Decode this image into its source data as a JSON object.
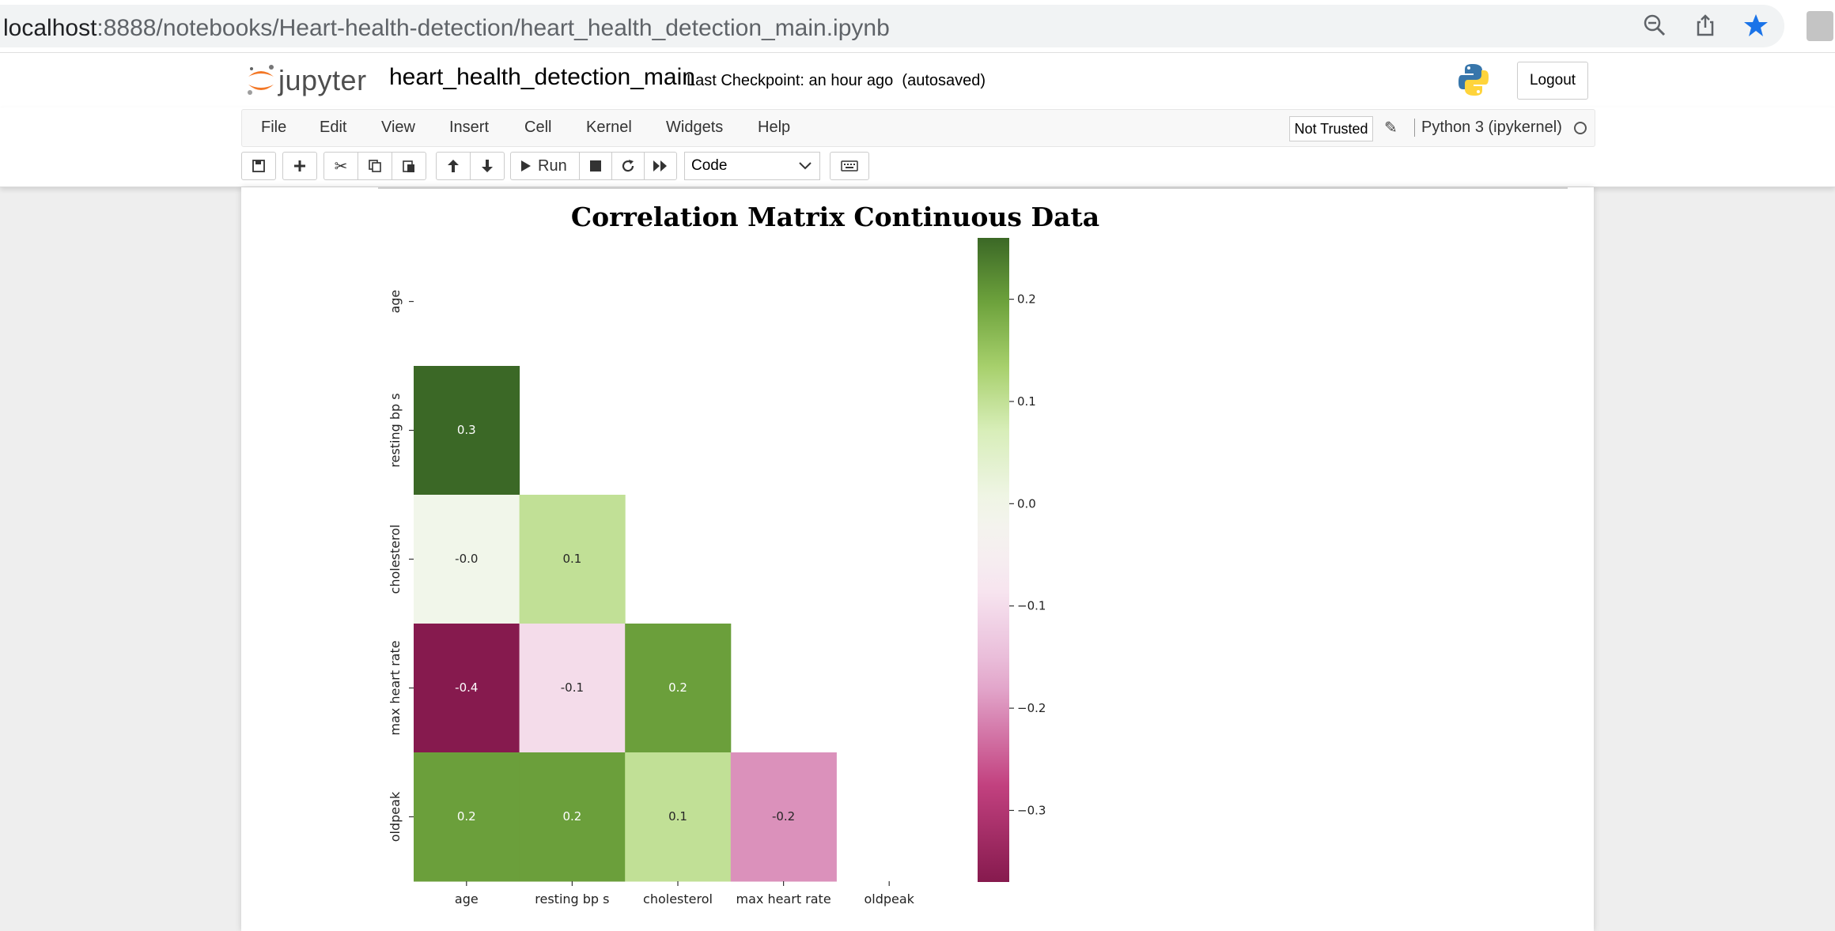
{
  "browser": {
    "url_host": "localhost",
    "url_path": ":8888/notebooks/Heart-health-detection/heart_health_detection_main.ipynb",
    "icons": [
      "zoom-out-icon",
      "share-icon",
      "bookmark-star-icon",
      "profile-avatar"
    ]
  },
  "header": {
    "logo_text": "jupyter",
    "notebook_name": "heart_health_detection_main",
    "checkpoint": "Last Checkpoint: an hour ago",
    "autosave": "(autosaved)",
    "logout_label": "Logout"
  },
  "menubar": {
    "items": [
      "File",
      "Edit",
      "View",
      "Insert",
      "Cell",
      "Kernel",
      "Widgets",
      "Help"
    ],
    "trust_label": "Not Trusted",
    "kernel_label": "Python 3 (ipykernel)"
  },
  "toolbar": {
    "run_label": "Run",
    "cell_type": "Code",
    "icons": [
      "save-icon",
      "add-cell-icon",
      "cut-icon",
      "copy-icon",
      "paste-icon",
      "move-up-icon",
      "move-down-icon",
      "run-icon",
      "stop-icon",
      "restart-icon",
      "fast-forward-icon",
      "keyboard-icon"
    ]
  },
  "colors": {
    "accent_orange": "#f37726",
    "pos_strong": "#3b6826",
    "neutral": "#f5f5f2",
    "neg_strong": "#861a4e"
  },
  "chart_data": {
    "type": "heatmap",
    "title": "Correlation Matrix Continuous Data",
    "labels": [
      "age",
      "resting bp s",
      "cholesterol",
      "max heart rate",
      "oldpeak"
    ],
    "mask": "upper-triangle-including-diagonal",
    "cells": [
      {
        "row": "resting bp s",
        "col": "age",
        "value": 0.3,
        "label": "0.3"
      },
      {
        "row": "cholesterol",
        "col": "age",
        "value": -0.0,
        "label": "-0.0"
      },
      {
        "row": "cholesterol",
        "col": "resting bp s",
        "value": 0.1,
        "label": "0.1"
      },
      {
        "row": "max heart rate",
        "col": "age",
        "value": -0.4,
        "label": "-0.4"
      },
      {
        "row": "max heart rate",
        "col": "resting bp s",
        "value": -0.1,
        "label": "-0.1"
      },
      {
        "row": "max heart rate",
        "col": "cholesterol",
        "value": 0.2,
        "label": "0.2"
      },
      {
        "row": "oldpeak",
        "col": "age",
        "value": 0.2,
        "label": "0.2"
      },
      {
        "row": "oldpeak",
        "col": "resting bp s",
        "value": 0.2,
        "label": "0.2"
      },
      {
        "row": "oldpeak",
        "col": "cholesterol",
        "value": 0.1,
        "label": "0.1"
      },
      {
        "row": "oldpeak",
        "col": "max heart rate",
        "value": -0.2,
        "label": "-0.2"
      }
    ],
    "colormap": "PiYG",
    "vmin": -0.37,
    "vmax": 0.26,
    "colorbar_ticks": [
      0.2,
      0.1,
      0.0,
      -0.1,
      -0.2,
      -0.3
    ],
    "colorbar_tick_labels": [
      "0.2",
      "0.1",
      "0.0",
      "−0.1",
      "−0.2",
      "−0.3"
    ]
  }
}
